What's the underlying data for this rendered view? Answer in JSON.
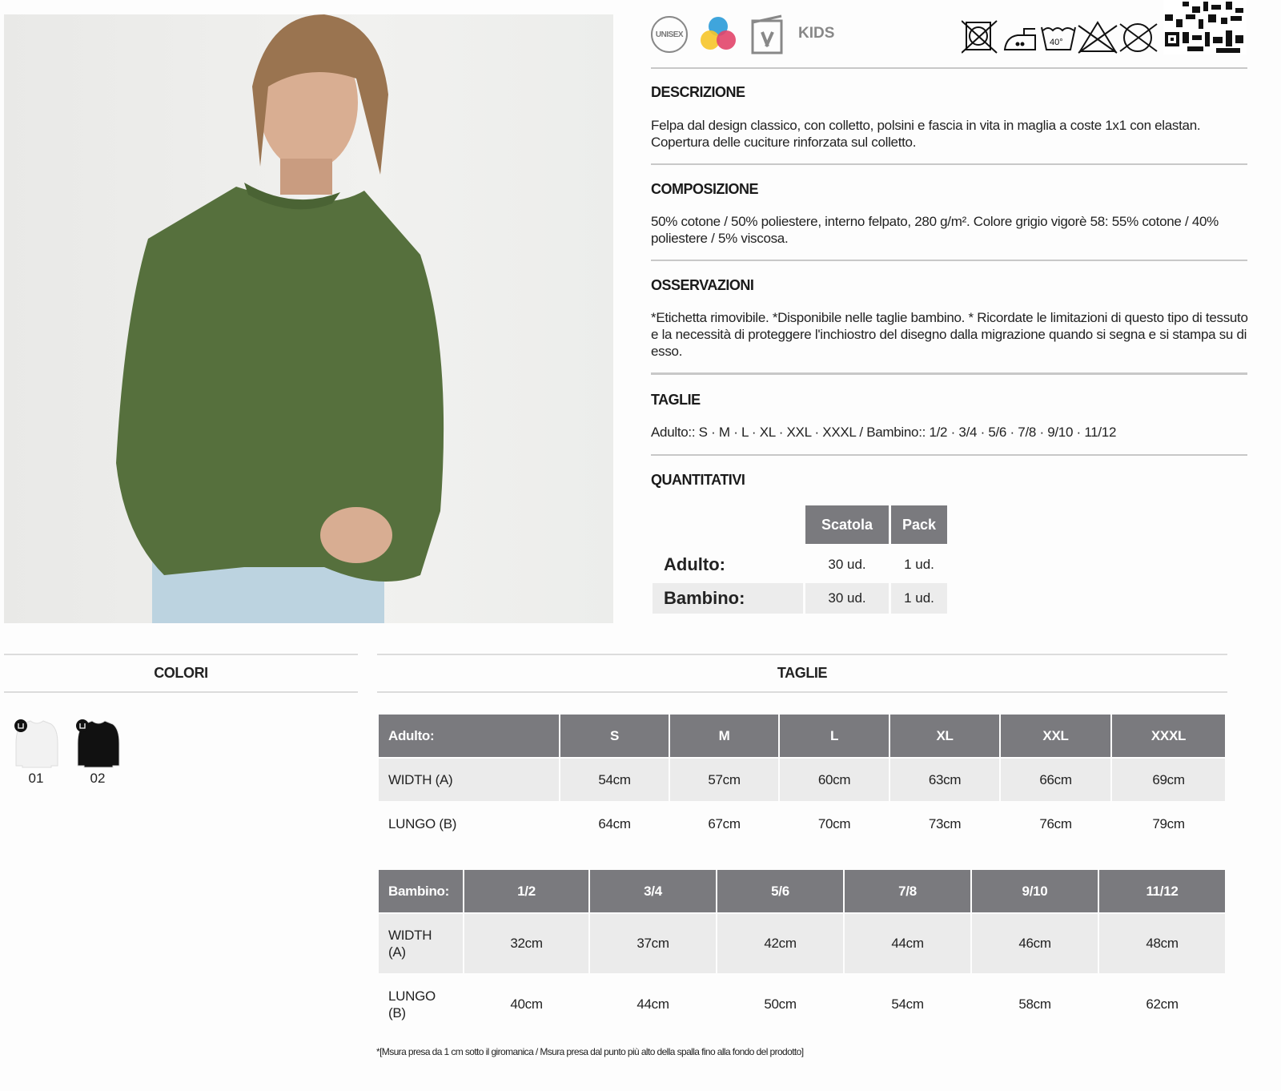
{
  "icons": {
    "unisex": "UNISEX",
    "kids": "KIDS",
    "care": [
      "no-tumble-dry-icon",
      "iron-medium-icon",
      "wash-40-icon",
      "no-bleach-icon",
      "no-dry-clean-icon"
    ],
    "wash_temp": "40°"
  },
  "descrizione": {
    "title": "DESCRIZIONE",
    "text": "Felpa dal design classico, con colletto, polsini e fascia in vita in maglia a coste 1x1 con elastan. Copertura delle cuciture rinforzata sul colletto."
  },
  "composizione": {
    "title": "COMPOSIZIONE",
    "text": "50% cotone / 50% poliestere, interno felpato, 280 g/m². Colore grigio vigorè 58: 55% cotone / 40% poliestere / 5% viscosa."
  },
  "osservazioni": {
    "title": "OSSERVAZIONI",
    "text": "*Etichetta rimovibile. *Disponibile nelle taglie bambino. * Ricordate le limitazioni di questo tipo di tessuto e la necessità di proteggere l'inchiostro del disegno dalla migrazione quando si segna e si stampa su di esso."
  },
  "taglie_info": {
    "title": "TAGLIE",
    "text": "Adulto:: S · M · L · XL · XXL · XXXL / Bambino:: 1/2 · 3/4 · 5/6 · 7/8 · 9/10 · 11/12"
  },
  "quantitativi": {
    "title": "QUANTITATIVI",
    "headers": [
      "Scatola",
      "Pack"
    ],
    "rows": [
      {
        "label": "Adulto:",
        "scatola": "30 ud.",
        "pack": "1 ud."
      },
      {
        "label": "Bambino:",
        "scatola": "30 ud.",
        "pack": "1 ud."
      }
    ]
  },
  "colori": {
    "title": "COLORI",
    "items": [
      {
        "code": "01",
        "color": "#f2f2f2"
      },
      {
        "code": "02",
        "color": "#111111"
      }
    ]
  },
  "taglie": {
    "title": "TAGLIE",
    "adult": {
      "headers": [
        "Adulto:",
        "S",
        "M",
        "L",
        "XL",
        "XXL",
        "XXXL"
      ],
      "rows": [
        [
          "WIDTH (A)",
          "54cm",
          "57cm",
          "60cm",
          "63cm",
          "66cm",
          "69cm"
        ],
        [
          "LUNGO (B)",
          "64cm",
          "67cm",
          "70cm",
          "73cm",
          "76cm",
          "79cm"
        ]
      ]
    },
    "child": {
      "headers": [
        "Bambino:",
        "1/2",
        "3/4",
        "5/6",
        "7/8",
        "9/10",
        "11/12"
      ],
      "rows": [
        [
          "WIDTH (A)",
          "32cm",
          "37cm",
          "42cm",
          "44cm",
          "46cm",
          "48cm"
        ],
        [
          "LUNGO (B)",
          "40cm",
          "44cm",
          "50cm",
          "54cm",
          "58cm",
          "62cm"
        ]
      ]
    }
  },
  "footnote": "*[Msura presa da 1 cm sotto il giromanica / Msura presa dal punto più alto della spalla fino alla fondo del prodotto]"
}
